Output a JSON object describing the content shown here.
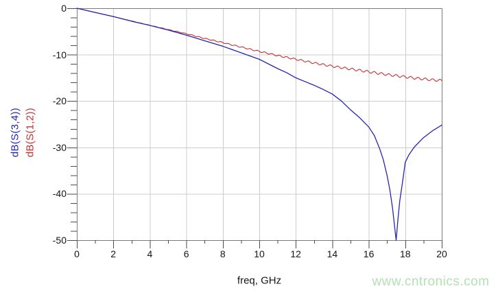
{
  "watermark": {
    "text": "www.cntronics.com",
    "color": "#b4dfb4"
  },
  "axis_style": {
    "grid_color": "#cccccc",
    "border_color": "#7a7a7a",
    "tick_color": "#4a4a4a",
    "text_color": "#141414",
    "background": "#ffffff"
  },
  "chart_data": {
    "type": "line",
    "title": "",
    "xlabel": "freq, GHz",
    "ylabel": "dB",
    "xlim": [
      0,
      20
    ],
    "ylim": [
      -50,
      0
    ],
    "grid": true,
    "legend_position": "left-rotated",
    "x_major_ticks": [
      0,
      2,
      4,
      6,
      8,
      10,
      12,
      14,
      16,
      18,
      20
    ],
    "x_minor_step": 1,
    "y_major_ticks": [
      0,
      -10,
      -20,
      -30,
      -40,
      -50
    ],
    "y_minor_step": 2,
    "series": [
      {
        "name": "dB(S(3,4))",
        "color": "#2525b2",
        "x": [
          0,
          0.5,
          1,
          1.5,
          2,
          2.5,
          3,
          3.5,
          4,
          4.5,
          5,
          5.5,
          6,
          6.5,
          7,
          7.5,
          8,
          8.5,
          9,
          9.5,
          10,
          10.5,
          11,
          11.5,
          12,
          12.5,
          13,
          13.5,
          14,
          14.5,
          15,
          15.5,
          16,
          16.3,
          16.6,
          16.8,
          17,
          17.15,
          17.3,
          17.4,
          17.5,
          17.6,
          17.7,
          17.85,
          18,
          18.2,
          18.5,
          19,
          19.5,
          20
        ],
        "y": [
          0,
          -0.45,
          -0.9,
          -1.35,
          -1.8,
          -2.3,
          -2.8,
          -3.25,
          -3.7,
          -4.2,
          -4.7,
          -5.25,
          -5.8,
          -6.4,
          -7.0,
          -7.6,
          -8.2,
          -8.9,
          -9.6,
          -10.3,
          -11.0,
          -12.0,
          -13.0,
          -13.9,
          -15.0,
          -15.8,
          -16.6,
          -17.5,
          -18.5,
          -20.0,
          -21.9,
          -23.6,
          -25.6,
          -27.4,
          -30.3,
          -32.7,
          -36.0,
          -39.0,
          -43.0,
          -46.5,
          -50.0,
          -45.5,
          -41.5,
          -37.5,
          -33.2,
          -31.6,
          -29.9,
          -27.9,
          -26.4,
          -25.2
        ]
      },
      {
        "name": "dB(S(1,2))",
        "color": "#c62f2f",
        "x": [
          0,
          0.5,
          1,
          1.5,
          2,
          2.5,
          3,
          3.5,
          4,
          4.5,
          5,
          5.5,
          6,
          6.5,
          7,
          7.5,
          8,
          8.5,
          9,
          9.5,
          10,
          10.5,
          11,
          11.5,
          12,
          12.5,
          13,
          13.5,
          14,
          14.5,
          15,
          15.5,
          16,
          16.5,
          17,
          17.5,
          18,
          18.5,
          19,
          19.5,
          20
        ],
        "y": [
          0,
          -0.45,
          -0.9,
          -1.35,
          -1.8,
          -2.28,
          -2.75,
          -3.22,
          -3.68,
          -4.14,
          -4.6,
          -5.05,
          -5.5,
          -6.0,
          -6.5,
          -6.95,
          -7.4,
          -7.9,
          -8.35,
          -8.85,
          -9.3,
          -9.75,
          -10.2,
          -10.6,
          -11.0,
          -11.4,
          -11.8,
          -12.15,
          -12.5,
          -12.8,
          -13.1,
          -13.4,
          -13.7,
          -14.0,
          -14.3,
          -14.55,
          -14.8,
          -15.05,
          -15.25,
          -15.45,
          -15.6
        ],
        "ripple": {
          "start_ghz": 2,
          "amplitude_growth_db_per_ghz": 0.018,
          "max_amplitude_db": 0.25,
          "period_ghz": 0.4
        }
      }
    ]
  }
}
